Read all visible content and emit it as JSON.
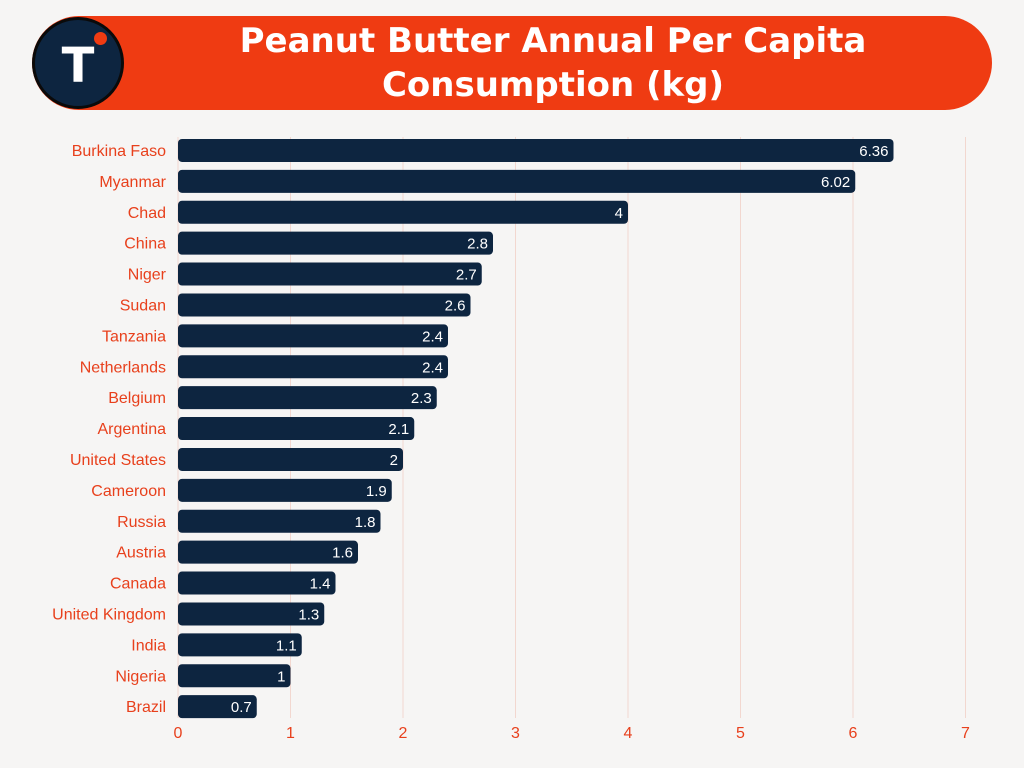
{
  "brand": {
    "logo_letter": "T",
    "header_color": "#ef3b12",
    "logo_color": "#0d2540"
  },
  "chart_data": {
    "type": "bar",
    "orientation": "horizontal",
    "title": "Peanut Butter Annual Per Capita Consumption (kg)",
    "categories": [
      "Burkina Faso",
      "Myanmar",
      "Chad",
      "China",
      "Niger",
      "Sudan",
      "Tanzania",
      "Netherlands",
      "Belgium",
      "Argentina",
      "United States",
      "Cameroon",
      "Russia",
      "Austria",
      "Canada",
      "United Kingdom",
      "India",
      "Nigeria",
      "Brazil"
    ],
    "values": [
      6.36,
      6.02,
      4,
      2.8,
      2.7,
      2.6,
      2.4,
      2.4,
      2.3,
      2.1,
      2,
      1.9,
      1.8,
      1.6,
      1.4,
      1.3,
      1.1,
      1,
      0.7
    ],
    "value_labels": [
      "6.36",
      "6.02",
      "4",
      "2.8",
      "2.7",
      "2.6",
      "2.4",
      "2.4",
      "2.3",
      "2.1",
      "2",
      "1.9",
      "1.8",
      "1.6",
      "1.4",
      "1.3",
      "1.1",
      "1",
      "0.7"
    ],
    "xlim": [
      0,
      7
    ],
    "xticks": [
      "0",
      "1",
      "2",
      "3",
      "4",
      "5",
      "6",
      "7"
    ],
    "xlabel": "",
    "ylabel": "",
    "grid": "vertical",
    "bar_color": "#0d2540",
    "label_color": "#e8401c",
    "grid_color": "#f2d7cf"
  }
}
